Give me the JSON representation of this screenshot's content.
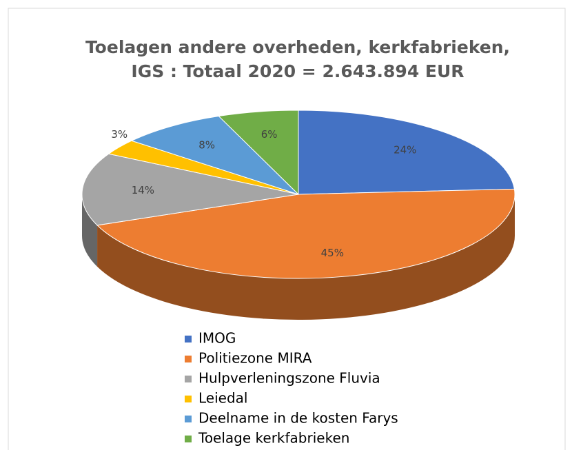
{
  "chart_data": {
    "type": "pie",
    "title": [
      "Toelagen andere overheden, kerkfabrieken,",
      "IGS : Totaal 2020 = 2.643.894 EUR"
    ],
    "categories": [
      "IMOG",
      "Politiezone MIRA",
      "Hulpverleningszone Fluvia",
      "Leiedal",
      "Deelname in de kosten Farys",
      "Toelage kerkfabrieken"
    ],
    "values": [
      24,
      45,
      14,
      3,
      8,
      6
    ],
    "value_labels": [
      "24%",
      "45%",
      "14%",
      "3%",
      "8%",
      "6%"
    ],
    "colors": [
      "#4472c4",
      "#ed7d31",
      "#a5a5a5",
      "#ffc000",
      "#5b9bd5",
      "#70ad47"
    ],
    "legend": "bottom"
  }
}
